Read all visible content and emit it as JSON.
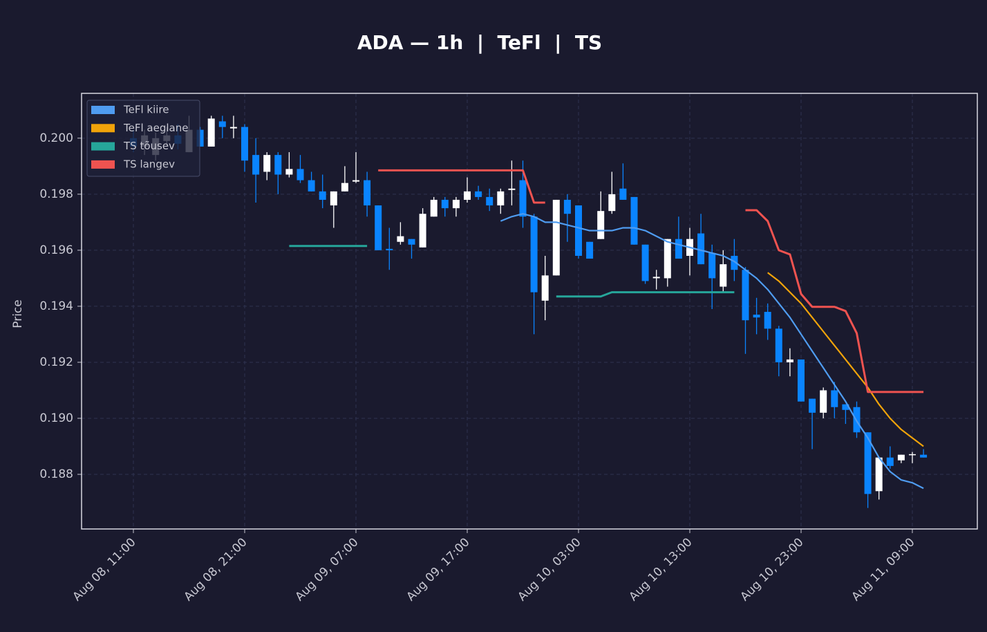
{
  "chart_data": {
    "type": "candlestick",
    "title": "ADA — 1h  |  TeFl  |  TS",
    "y_label": "Price",
    "categories": [
      "Aug 08, 11:00",
      null,
      null,
      null,
      null,
      null,
      null,
      null,
      null,
      null,
      "Aug 08, 21:00",
      null,
      null,
      null,
      null,
      null,
      null,
      null,
      null,
      null,
      "Aug 09, 07:00",
      null,
      null,
      null,
      null,
      null,
      null,
      null,
      null,
      null,
      "Aug 09, 17:00",
      null,
      null,
      null,
      null,
      null,
      null,
      null,
      null,
      null,
      "Aug 10, 03:00",
      null,
      null,
      null,
      null,
      null,
      null,
      null,
      null,
      null,
      "Aug 10, 13:00",
      null,
      null,
      null,
      null,
      null,
      null,
      null,
      null,
      null,
      "Aug 10, 23:00",
      null,
      null,
      null,
      null,
      null,
      null,
      null,
      null,
      null,
      "Aug 11, 09:00",
      null
    ],
    "open": [
      0.2,
      0.1997,
      0.1994,
      0.1999,
      0.2001,
      0.1995,
      0.2003,
      0.1997,
      0.2006,
      0.20035,
      0.2004,
      0.1994,
      0.1988,
      0.1994,
      0.1987,
      0.1989,
      0.1985,
      0.1981,
      0.1976,
      0.1981,
      0.19845,
      0.1985,
      0.1976,
      0.19605,
      0.1963,
      0.1964,
      0.1961,
      0.1972,
      0.1978,
      0.1975,
      0.1978,
      0.1981,
      0.1979,
      0.1976,
      0.19815,
      0.1985,
      0.1972,
      0.1942,
      0.1951,
      0.1978,
      0.1976,
      0.1963,
      0.1964,
      0.1974,
      0.1982,
      0.1979,
      0.1962,
      0.195,
      0.195,
      0.1964,
      0.1958,
      0.1966,
      0.1959,
      0.1947,
      0.1958,
      0.1953,
      0.1937,
      0.1938,
      0.1932,
      0.192,
      0.1921,
      0.1907,
      0.1902,
      0.191,
      0.1905,
      0.1904,
      0.1895,
      0.1874,
      0.1886,
      0.1885,
      0.1887,
      0.1887
    ],
    "high": [
      0.2003,
      0.2003,
      0.2002,
      0.2004,
      0.2005,
      0.2008,
      0.2004,
      0.2008,
      0.2008,
      0.2008,
      0.2005,
      0.2,
      0.1995,
      0.1995,
      0.1995,
      0.1994,
      0.1988,
      0.1987,
      0.1981,
      0.199,
      0.1995,
      0.1988,
      0.1976,
      0.1968,
      0.197,
      0.1964,
      0.1975,
      0.1979,
      0.1979,
      0.1979,
      0.1986,
      0.1983,
      0.1982,
      0.1982,
      0.1992,
      0.1992,
      0.1973,
      0.1958,
      0.1978,
      0.198,
      0.1976,
      0.1963,
      0.1981,
      0.1988,
      0.1991,
      0.1979,
      0.1962,
      0.1953,
      0.1964,
      0.1972,
      0.1968,
      0.1973,
      0.1962,
      0.196,
      0.1964,
      0.1954,
      0.1943,
      0.1941,
      0.1933,
      0.1925,
      0.1921,
      0.1907,
      0.1911,
      0.1913,
      0.1905,
      0.1906,
      0.1895,
      0.1886,
      0.189,
      0.1887,
      0.1888,
      0.1889
    ],
    "low": [
      0.1995,
      0.1994,
      0.1992,
      0.1997,
      0.1996,
      0.1995,
      0.1997,
      0.1997,
      0.2,
      0.2,
      0.1988,
      0.1977,
      0.1985,
      0.198,
      0.1986,
      0.1984,
      0.1981,
      0.1975,
      0.1968,
      0.1981,
      0.1984,
      0.1972,
      0.196,
      0.1953,
      0.1962,
      0.1957,
      0.1961,
      0.1972,
      0.1972,
      0.1972,
      0.1977,
      0.1978,
      0.1974,
      0.1973,
      0.1976,
      0.1968,
      0.193,
      0.1935,
      0.1951,
      0.1963,
      0.1957,
      0.1957,
      0.1964,
      0.1973,
      0.1978,
      0.1962,
      0.1948,
      0.1946,
      0.1947,
      0.1957,
      0.1951,
      0.1955,
      0.1939,
      0.1945,
      0.1949,
      0.1923,
      0.193,
      0.1928,
      0.1915,
      0.1915,
      0.1906,
      0.1889,
      0.19,
      0.19,
      0.1898,
      0.1893,
      0.1868,
      0.1871,
      0.1882,
      0.1884,
      0.1884,
      0.1886
    ],
    "close": [
      0.1997,
      0.2001,
      0.2,
      0.2001,
      0.1998,
      0.2003,
      0.1997,
      0.2007,
      0.2004,
      0.2004,
      0.1992,
      0.1987,
      0.1994,
      0.1987,
      0.1989,
      0.1985,
      0.1981,
      0.1978,
      0.1981,
      0.1984,
      0.1985,
      0.1976,
      0.196,
      0.196,
      0.1965,
      0.1962,
      0.1973,
      0.1978,
      0.1975,
      0.1978,
      0.1981,
      0.1979,
      0.1976,
      0.1981,
      0.1982,
      0.1972,
      0.1945,
      0.1951,
      0.1978,
      0.1973,
      0.1958,
      0.1957,
      0.1974,
      0.198,
      0.1978,
      0.1962,
      0.1949,
      0.19505,
      0.1964,
      0.1957,
      0.1964,
      0.1955,
      0.195,
      0.1955,
      0.1953,
      0.1935,
      0.1936,
      0.1932,
      0.192,
      0.1921,
      0.1906,
      0.1902,
      0.191,
      0.1904,
      0.1903,
      0.1895,
      0.1873,
      0.1886,
      0.1883,
      0.1887,
      0.18872,
      0.1886
    ],
    "up_color": "#ffffff",
    "down_color": "#0a84ff",
    "series": [
      {
        "name": "TeFl kiire",
        "color": "#4f9cf0",
        "values": [
          null,
          null,
          null,
          null,
          null,
          null,
          null,
          null,
          null,
          null,
          null,
          null,
          null,
          null,
          null,
          null,
          null,
          null,
          null,
          null,
          null,
          null,
          null,
          null,
          null,
          null,
          null,
          null,
          null,
          null,
          null,
          null,
          null,
          0.19704,
          0.1972,
          0.1973,
          0.1972,
          0.197,
          0.197,
          0.1969,
          0.1968,
          0.1967,
          0.1967,
          0.1967,
          0.1968,
          0.1968,
          0.1967,
          0.1965,
          0.1963,
          0.1962,
          0.1961,
          0.196,
          0.1959,
          0.1958,
          0.1956,
          0.1953,
          0.195,
          0.1946,
          0.1941,
          0.1936,
          0.193,
          0.1924,
          0.1918,
          0.1912,
          0.1906,
          0.1899,
          0.1893,
          0.1886,
          0.1881,
          0.1878,
          0.1877,
          0.1875
        ]
      },
      {
        "name": "TeFl aeglane",
        "color": "#f0a30a",
        "values": [
          null,
          null,
          null,
          null,
          null,
          null,
          null,
          null,
          null,
          null,
          null,
          null,
          null,
          null,
          null,
          null,
          null,
          null,
          null,
          null,
          null,
          null,
          null,
          null,
          null,
          null,
          null,
          null,
          null,
          null,
          null,
          null,
          null,
          null,
          null,
          null,
          null,
          null,
          null,
          null,
          null,
          null,
          null,
          null,
          null,
          null,
          null,
          null,
          null,
          null,
          null,
          null,
          null,
          null,
          null,
          null,
          null,
          0.1952,
          0.1949,
          0.1945,
          0.1941,
          0.1936,
          0.1931,
          0.1926,
          0.1921,
          0.1916,
          0.1911,
          0.1905,
          0.19,
          0.1896,
          0.1893,
          0.189
        ]
      },
      {
        "name": "TS tõusev",
        "color": "#26a69a",
        "values": [
          null,
          null,
          null,
          null,
          null,
          null,
          null,
          null,
          null,
          null,
          null,
          null,
          null,
          null,
          0.19615,
          0.19615,
          0.19615,
          0.19615,
          0.19615,
          0.19615,
          0.19615,
          0.19615,
          null,
          null,
          null,
          null,
          null,
          null,
          null,
          null,
          null,
          null,
          null,
          null,
          null,
          null,
          null,
          null,
          0.19435,
          0.19435,
          0.19435,
          0.19435,
          0.19435,
          0.1945,
          0.1945,
          0.1945,
          0.1945,
          0.1945,
          0.1945,
          0.1945,
          0.1945,
          0.1945,
          0.1945,
          0.1945,
          0.1945,
          null,
          null,
          null,
          null,
          null,
          null,
          null,
          null,
          null,
          null,
          null,
          null,
          null,
          null,
          null,
          null,
          null
        ]
      },
      {
        "name": "TS langev",
        "color": "#ef5350",
        "values": [
          null,
          null,
          null,
          null,
          null,
          null,
          null,
          null,
          null,
          null,
          null,
          null,
          null,
          null,
          null,
          null,
          null,
          null,
          null,
          null,
          null,
          null,
          0.19885,
          0.19885,
          0.19885,
          0.19885,
          0.19885,
          0.19885,
          0.19885,
          0.19885,
          0.19885,
          0.19885,
          0.19885,
          0.19885,
          0.19885,
          0.19885,
          0.1977,
          0.1977,
          null,
          null,
          null,
          null,
          null,
          null,
          null,
          null,
          null,
          null,
          null,
          null,
          null,
          null,
          null,
          null,
          null,
          0.19743,
          0.19743,
          0.19704,
          0.196,
          0.19585,
          0.19444,
          0.19398,
          0.19398,
          0.19398,
          0.19383,
          0.19304,
          0.19094,
          0.19094,
          0.19094,
          0.19094,
          0.19094,
          0.19094
        ]
      }
    ],
    "ylim": [
      0.18605,
      0.2016
    ],
    "yticks": [
      0.188,
      {
        "value": 0.19,
        "label": "0.190"
      },
      0.192,
      0.194,
      0.196,
      0.198,
      {
        "value": 0.2,
        "label": "0.200"
      }
    ],
    "grid": true,
    "legend": "upper left"
  }
}
